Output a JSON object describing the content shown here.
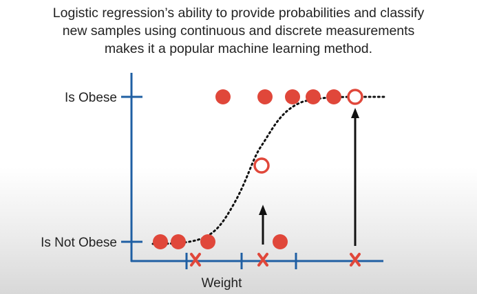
{
  "caption": {
    "line1": "Logistic regression’s ability to provide probabilities and classify",
    "line2": "new samples using continuous and discrete measurements",
    "line3": "makes it a popular machine learning method."
  },
  "chart": {
    "y_top_label": "Is Obese",
    "y_bottom_label": "Is Not Obese",
    "x_label": "Weight"
  },
  "colors": {
    "axis": "#1f5fa3",
    "point": "#e0473a",
    "text": "#222222",
    "curve": "#111111"
  }
}
